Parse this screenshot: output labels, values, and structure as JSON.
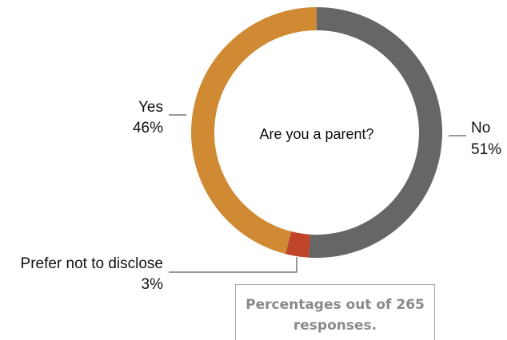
{
  "chart_data": {
    "type": "pie",
    "donut": true,
    "title": "Are you a parent?",
    "slices": [
      {
        "label": "No",
        "value": 51,
        "value_label": "51%",
        "color": "#666666"
      },
      {
        "label": "Prefer not to disclose",
        "value": 3,
        "value_label": "3%",
        "color": "#c0432c"
      },
      {
        "label": "Yes",
        "value": 46,
        "value_label": "46%",
        "color": "#d08a33"
      }
    ]
  },
  "note": {
    "line1": "Percentages out of 265",
    "line2": "responses."
  }
}
